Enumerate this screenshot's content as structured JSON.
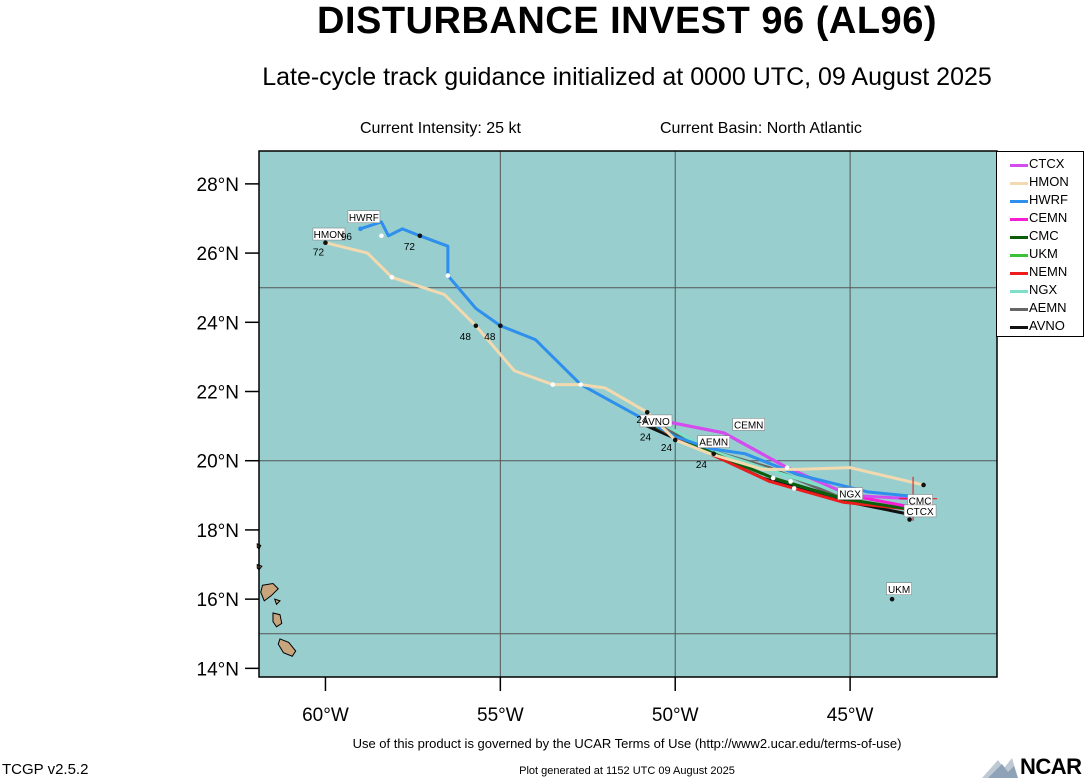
{
  "header": {
    "title": "DISTURBANCE INVEST 96 (AL96)",
    "subtitle": "Late-cycle track guidance initialized at 0000 UTC, 09 August 2025",
    "current_intensity": "Current Intensity: 25 kt",
    "current_basin": "Current Basin: North Atlantic"
  },
  "map": {
    "lat_ticks": [
      {
        "value": 28,
        "label": "28°N"
      },
      {
        "value": 26,
        "label": "26°N"
      },
      {
        "value": 24,
        "label": "24°N"
      },
      {
        "value": 22,
        "label": "22°N"
      },
      {
        "value": 20,
        "label": "20°N"
      },
      {
        "value": 18,
        "label": "18°N"
      },
      {
        "value": 16,
        "label": "16°N"
      },
      {
        "value": 14,
        "label": "14°N"
      }
    ],
    "lon_ticks": [
      {
        "value": -60,
        "label": "60°W"
      },
      {
        "value": -55,
        "label": "55°W"
      },
      {
        "value": -50,
        "label": "50°W"
      },
      {
        "value": -45,
        "label": "45°W"
      }
    ],
    "colors": {
      "ocean": "#98cece",
      "land": "#c9a57e",
      "grid": "#555555"
    }
  },
  "legend": [
    {
      "name": "CTCX",
      "color": "#d44cf0"
    },
    {
      "name": "HMON",
      "color": "#f2d9b0"
    },
    {
      "name": "HWRF",
      "color": "#2e8fec"
    },
    {
      "name": "CEMN",
      "color": "#f51ed2"
    },
    {
      "name": "CMC",
      "color": "#0a5e0a"
    },
    {
      "name": "UKM",
      "color": "#3ac23a"
    },
    {
      "name": "NEMN",
      "color": "#ec1c1c"
    },
    {
      "name": "NGX",
      "color": "#7ee0c8"
    },
    {
      "name": "AEMN",
      "color": "#666666"
    },
    {
      "name": "AVNO",
      "color": "#111111"
    }
  ],
  "tracks": [
    {
      "name": "AVNO",
      "color": "#111111",
      "points": [
        [
          -50.8,
          21.0
        ],
        [
          -49.0,
          20.2
        ],
        [
          -47.5,
          19.5
        ],
        [
          -45.5,
          18.9
        ],
        [
          -43.3,
          18.45
        ]
      ]
    },
    {
      "name": "AEMN",
      "color": "#666666",
      "points": [
        [
          -50.6,
          21.1
        ],
        [
          -49.0,
          20.3
        ],
        [
          -47.3,
          19.8
        ],
        [
          -45.2,
          18.9
        ],
        [
          -43.3,
          18.6
        ]
      ]
    },
    {
      "name": "NGX",
      "color": "#7ee0c8",
      "points": [
        [
          -50.6,
          21.2
        ],
        [
          -49.0,
          20.3
        ],
        [
          -47.2,
          19.7
        ],
        [
          -45.0,
          19.0
        ],
        [
          -43.4,
          18.7
        ]
      ]
    },
    {
      "name": "NEMN",
      "color": "#ec1c1c",
      "points": [
        [
          -50.6,
          21.0
        ],
        [
          -49.0,
          20.2
        ],
        [
          -47.3,
          19.4
        ],
        [
          -45.2,
          18.8
        ],
        [
          -43.3,
          18.6
        ]
      ]
    },
    {
      "name": "CMC",
      "color": "#0a5e0a",
      "points": [
        [
          -50.6,
          21.0
        ],
        [
          -49.0,
          20.25
        ],
        [
          -47.2,
          19.5
        ],
        [
          -45.2,
          18.9
        ],
        [
          -43.3,
          18.6
        ]
      ]
    },
    {
      "name": "CEMN",
      "color": "#f51ed2",
      "points": [
        [
          -50.6,
          21.2
        ],
        [
          -48.6,
          20.8
        ],
        [
          -46.8,
          19.8
        ],
        [
          -45.0,
          19.0
        ],
        [
          -43.2,
          18.65
        ]
      ]
    },
    {
      "name": "CTCX",
      "color": "#d44cf0",
      "points": [
        [
          -50.6,
          21.2
        ],
        [
          -48.6,
          20.8
        ],
        [
          -46.8,
          19.8
        ],
        [
          -45.0,
          19.0
        ],
        [
          -43.2,
          18.9
        ]
      ]
    },
    {
      "name": "HWRF",
      "color": "#2e8fec",
      "points": [
        [
          -43.0,
          18.95
        ],
        [
          -44.5,
          19.1
        ],
        [
          -46.5,
          19.6
        ],
        [
          -48.0,
          20.2
        ],
        [
          -49.0,
          20.35
        ],
        [
          -50.0,
          20.7
        ],
        [
          -50.9,
          21.2
        ],
        [
          -52.7,
          22.2
        ],
        [
          -54.0,
          23.5
        ],
        [
          -55.0,
          23.9
        ],
        [
          -55.7,
          24.4
        ],
        [
          -56.5,
          25.35
        ],
        [
          -56.5,
          26.2
        ],
        [
          -57.3,
          26.5
        ],
        [
          -57.8,
          26.7
        ],
        [
          -58.2,
          26.5
        ],
        [
          -58.4,
          26.9
        ],
        [
          -59.0,
          26.7
        ]
      ]
    },
    {
      "name": "HMON",
      "color": "#f2d9b0",
      "points": [
        [
          -42.9,
          19.3
        ],
        [
          -45.0,
          19.8
        ],
        [
          -46.5,
          19.75
        ],
        [
          -47.5,
          19.75
        ],
        [
          -49.0,
          20.2
        ],
        [
          -50.0,
          20.6
        ],
        [
          -50.8,
          21.4
        ],
        [
          -52.0,
          22.1
        ],
        [
          -52.7,
          22.2
        ],
        [
          -53.5,
          22.2
        ],
        [
          -54.6,
          22.6
        ],
        [
          -55.7,
          23.9
        ],
        [
          -56.6,
          24.8
        ],
        [
          -57.5,
          25.1
        ],
        [
          -58.1,
          25.3
        ],
        [
          -58.8,
          26.0
        ],
        [
          -60.0,
          26.3
        ]
      ]
    }
  ],
  "track_points": [
    {
      "lon": -59.0,
      "lat": 26.7,
      "color": "#2e8fec"
    },
    {
      "lon": -57.3,
      "lat": 26.5,
      "color": "#111111"
    },
    {
      "lon": -56.5,
      "lat": 25.35,
      "color": "#ffffff"
    },
    {
      "lon": -58.4,
      "lat": 26.5,
      "color": "#ffffff"
    },
    {
      "lon": -60.0,
      "lat": 26.3,
      "color": "#111111"
    },
    {
      "lon": -55.0,
      "lat": 23.9,
      "color": "#111111"
    },
    {
      "lon": -55.7,
      "lat": 23.9,
      "color": "#111111"
    },
    {
      "lon": -58.1,
      "lat": 25.3,
      "color": "#ffffff"
    },
    {
      "lon": -53.5,
      "lat": 22.2,
      "color": "#ffffff"
    },
    {
      "lon": -52.7,
      "lat": 22.2,
      "color": "#ffffff"
    },
    {
      "lon": -50.8,
      "lat": 21.4,
      "color": "#111111"
    },
    {
      "lon": -50.0,
      "lat": 20.6,
      "color": "#111111"
    },
    {
      "lon": -48.9,
      "lat": 20.2,
      "color": "#111111"
    },
    {
      "lon": -50.6,
      "lat": 21.0,
      "color": "#111111"
    },
    {
      "lon": -47.2,
      "lat": 19.5,
      "color": "#ffffff"
    },
    {
      "lon": -46.7,
      "lat": 19.4,
      "color": "#ffffff"
    },
    {
      "lon": -46.6,
      "lat": 19.2,
      "color": "#ffffff"
    },
    {
      "lon": -46.8,
      "lat": 19.8,
      "color": "#ffffff"
    },
    {
      "lon": -42.9,
      "lat": 19.3,
      "color": "#111111"
    },
    {
      "lon": -43.3,
      "lat": 18.3,
      "color": "#111111"
    },
    {
      "lon": -43.8,
      "lat": 16.0,
      "color": "#111111"
    }
  ],
  "model_labels": [
    {
      "text": "HWRF",
      "lon": -58.9,
      "lat": 27.05
    },
    {
      "text": "HMON",
      "lon": -59.9,
      "lat": 26.55
    },
    {
      "text": "AVNO",
      "lon": -50.55,
      "lat": 21.15
    },
    {
      "text": "CEMN",
      "lon": -47.9,
      "lat": 21.05
    },
    {
      "text": "AEMN",
      "lon": -48.9,
      "lat": 20.55
    },
    {
      "text": "NGX",
      "lon": -45.0,
      "lat": 19.05
    },
    {
      "text": "CMC",
      "lon": -43.0,
      "lat": 18.85
    },
    {
      "text": "CTCX",
      "lon": -43.0,
      "lat": 18.55
    },
    {
      "text": "UKM",
      "lon": -43.6,
      "lat": 16.3
    }
  ],
  "hour_labels": [
    {
      "text": "96",
      "lon": -59.4,
      "lat": 26.5
    },
    {
      "text": "72",
      "lon": -60.2,
      "lat": 26.05
    },
    {
      "text": "72",
      "lon": -57.6,
      "lat": 26.2
    },
    {
      "text": "48",
      "lon": -56.0,
      "lat": 23.6
    },
    {
      "text": "48",
      "lon": -55.3,
      "lat": 23.6
    },
    {
      "text": "24",
      "lon": -50.95,
      "lat": 21.2
    },
    {
      "text": "24",
      "lon": -50.85,
      "lat": 20.7
    },
    {
      "text": "24",
      "lon": -50.25,
      "lat": 20.4
    },
    {
      "text": "24",
      "lon": -49.25,
      "lat": 19.9
    }
  ],
  "footer": {
    "terms": "Use of this product is governed by the UCAR Terms of Use (http://www2.ucar.edu/terms-of-use)",
    "version": "TCGP v2.5.2",
    "generated": "Plot generated at 1152 UTC   09 August 2025",
    "logo": "NCAR"
  }
}
